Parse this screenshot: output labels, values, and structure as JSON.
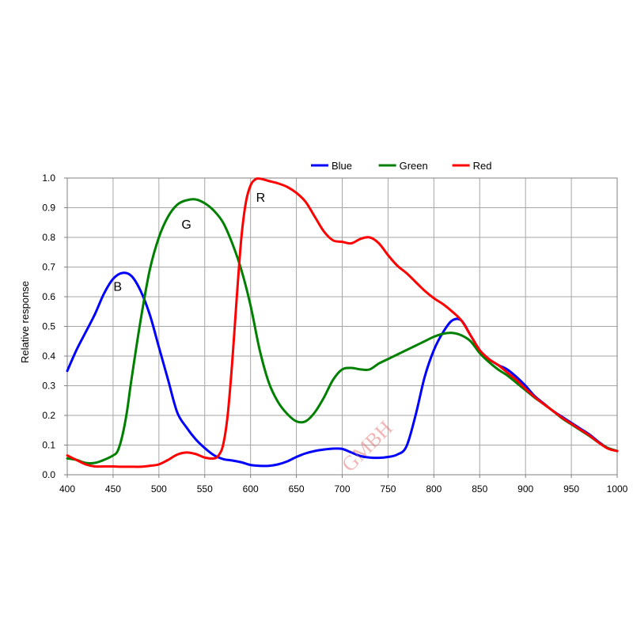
{
  "chart_data": {
    "type": "line",
    "title": "",
    "xlabel": "",
    "ylabel": "Relative response",
    "xlim": [
      400,
      1000
    ],
    "ylim": [
      0,
      1.0
    ],
    "x_ticks": [
      "400",
      "450",
      "500",
      "550",
      "600",
      "650",
      "700",
      "750",
      "800",
      "850",
      "900",
      "950",
      "1000"
    ],
    "y_ticks": [
      "0.0",
      "0.1",
      "0.2",
      "0.3",
      "0.4",
      "0.5",
      "0.6",
      "0.7",
      "0.8",
      "0.9",
      "1.0"
    ],
    "grid": true,
    "legend_position": "top",
    "watermark": "GMBH",
    "series": [
      {
        "name": "Blue",
        "tag": "B",
        "tag_at": [
          455,
          0.62
        ],
        "color": "#0000ff",
        "points": [
          [
            400,
            0.35
          ],
          [
            410,
            0.42
          ],
          [
            420,
            0.48
          ],
          [
            430,
            0.54
          ],
          [
            440,
            0.61
          ],
          [
            450,
            0.66
          ],
          [
            460,
            0.68
          ],
          [
            470,
            0.67
          ],
          [
            480,
            0.62
          ],
          [
            490,
            0.54
          ],
          [
            500,
            0.43
          ],
          [
            510,
            0.32
          ],
          [
            520,
            0.21
          ],
          [
            530,
            0.16
          ],
          [
            540,
            0.12
          ],
          [
            550,
            0.09
          ],
          [
            560,
            0.066
          ],
          [
            570,
            0.053
          ],
          [
            580,
            0.048
          ],
          [
            590,
            0.042
          ],
          [
            600,
            0.033
          ],
          [
            610,
            0.03
          ],
          [
            620,
            0.03
          ],
          [
            630,
            0.035
          ],
          [
            640,
            0.045
          ],
          [
            650,
            0.06
          ],
          [
            660,
            0.072
          ],
          [
            670,
            0.08
          ],
          [
            680,
            0.085
          ],
          [
            690,
            0.088
          ],
          [
            700,
            0.087
          ],
          [
            710,
            0.075
          ],
          [
            720,
            0.063
          ],
          [
            730,
            0.058
          ],
          [
            740,
            0.057
          ],
          [
            750,
            0.06
          ],
          [
            760,
            0.068
          ],
          [
            770,
            0.095
          ],
          [
            780,
            0.2
          ],
          [
            790,
            0.33
          ],
          [
            800,
            0.42
          ],
          [
            810,
            0.48
          ],
          [
            820,
            0.52
          ],
          [
            830,
            0.52
          ],
          [
            840,
            0.47
          ],
          [
            850,
            0.42
          ],
          [
            860,
            0.39
          ],
          [
            870,
            0.37
          ],
          [
            880,
            0.355
          ],
          [
            890,
            0.33
          ],
          [
            900,
            0.3
          ],
          [
            910,
            0.265
          ],
          [
            920,
            0.24
          ],
          [
            930,
            0.215
          ],
          [
            940,
            0.195
          ],
          [
            950,
            0.175
          ],
          [
            960,
            0.155
          ],
          [
            970,
            0.135
          ],
          [
            980,
            0.11
          ],
          [
            990,
            0.09
          ],
          [
            1000,
            0.08
          ]
        ]
      },
      {
        "name": "Green",
        "tag": "G",
        "tag_at": [
          530,
          0.83
        ],
        "color": "#008000",
        "points": [
          [
            400,
            0.055
          ],
          [
            410,
            0.05
          ],
          [
            420,
            0.04
          ],
          [
            430,
            0.04
          ],
          [
            440,
            0.05
          ],
          [
            450,
            0.065
          ],
          [
            455,
            0.08
          ],
          [
            460,
            0.13
          ],
          [
            465,
            0.21
          ],
          [
            470,
            0.32
          ],
          [
            480,
            0.52
          ],
          [
            490,
            0.69
          ],
          [
            500,
            0.8
          ],
          [
            510,
            0.87
          ],
          [
            520,
            0.91
          ],
          [
            530,
            0.925
          ],
          [
            540,
            0.928
          ],
          [
            550,
            0.915
          ],
          [
            560,
            0.89
          ],
          [
            570,
            0.85
          ],
          [
            580,
            0.78
          ],
          [
            590,
            0.69
          ],
          [
            600,
            0.57
          ],
          [
            610,
            0.42
          ],
          [
            620,
            0.31
          ],
          [
            630,
            0.245
          ],
          [
            640,
            0.205
          ],
          [
            650,
            0.18
          ],
          [
            660,
            0.18
          ],
          [
            670,
            0.21
          ],
          [
            680,
            0.26
          ],
          [
            690,
            0.32
          ],
          [
            700,
            0.355
          ],
          [
            710,
            0.36
          ],
          [
            720,
            0.355
          ],
          [
            730,
            0.355
          ],
          [
            740,
            0.375
          ],
          [
            750,
            0.39
          ],
          [
            760,
            0.405
          ],
          [
            770,
            0.42
          ],
          [
            780,
            0.435
          ],
          [
            790,
            0.45
          ],
          [
            800,
            0.465
          ],
          [
            810,
            0.475
          ],
          [
            820,
            0.478
          ],
          [
            830,
            0.47
          ],
          [
            840,
            0.45
          ],
          [
            850,
            0.41
          ],
          [
            860,
            0.38
          ],
          [
            870,
            0.355
          ],
          [
            880,
            0.335
          ],
          [
            890,
            0.31
          ],
          [
            900,
            0.285
          ],
          [
            910,
            0.26
          ],
          [
            920,
            0.238
          ],
          [
            930,
            0.215
          ],
          [
            940,
            0.19
          ],
          [
            950,
            0.17
          ],
          [
            960,
            0.15
          ],
          [
            970,
            0.13
          ],
          [
            980,
            0.108
          ],
          [
            990,
            0.09
          ],
          [
            1000,
            0.08
          ]
        ]
      },
      {
        "name": "Red",
        "tag": "R",
        "tag_at": [
          611,
          0.92
        ],
        "color": "#ff0000",
        "points": [
          [
            400,
            0.065
          ],
          [
            410,
            0.05
          ],
          [
            420,
            0.035
          ],
          [
            430,
            0.028
          ],
          [
            440,
            0.028
          ],
          [
            450,
            0.028
          ],
          [
            460,
            0.027
          ],
          [
            470,
            0.027
          ],
          [
            480,
            0.027
          ],
          [
            490,
            0.03
          ],
          [
            500,
            0.035
          ],
          [
            510,
            0.05
          ],
          [
            520,
            0.068
          ],
          [
            530,
            0.075
          ],
          [
            540,
            0.07
          ],
          [
            550,
            0.058
          ],
          [
            560,
            0.055
          ],
          [
            565,
            0.065
          ],
          [
            570,
            0.1
          ],
          [
            575,
            0.2
          ],
          [
            580,
            0.38
          ],
          [
            585,
            0.6
          ],
          [
            590,
            0.8
          ],
          [
            595,
            0.92
          ],
          [
            600,
            0.975
          ],
          [
            605,
            0.995
          ],
          [
            610,
            0.998
          ],
          [
            620,
            0.99
          ],
          [
            630,
            0.982
          ],
          [
            640,
            0.97
          ],
          [
            650,
            0.95
          ],
          [
            660,
            0.92
          ],
          [
            670,
            0.87
          ],
          [
            680,
            0.82
          ],
          [
            690,
            0.79
          ],
          [
            700,
            0.785
          ],
          [
            710,
            0.78
          ],
          [
            720,
            0.795
          ],
          [
            730,
            0.8
          ],
          [
            740,
            0.78
          ],
          [
            750,
            0.74
          ],
          [
            760,
            0.705
          ],
          [
            770,
            0.68
          ],
          [
            780,
            0.65
          ],
          [
            790,
            0.62
          ],
          [
            800,
            0.595
          ],
          [
            810,
            0.575
          ],
          [
            820,
            0.55
          ],
          [
            830,
            0.52
          ],
          [
            840,
            0.47
          ],
          [
            850,
            0.42
          ],
          [
            860,
            0.39
          ],
          [
            870,
            0.37
          ],
          [
            880,
            0.345
          ],
          [
            890,
            0.32
          ],
          [
            900,
            0.29
          ],
          [
            910,
            0.262
          ],
          [
            920,
            0.238
          ],
          [
            930,
            0.215
          ],
          [
            940,
            0.192
          ],
          [
            950,
            0.172
          ],
          [
            960,
            0.152
          ],
          [
            970,
            0.132
          ],
          [
            980,
            0.108
          ],
          [
            990,
            0.088
          ],
          [
            1000,
            0.08
          ]
        ]
      }
    ]
  }
}
